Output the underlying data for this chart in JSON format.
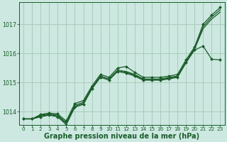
{
  "bg_color": "#cce8e0",
  "grid_color": "#aaccbb",
  "line_color": "#1a5c2a",
  "marker_color": "#1a5c2a",
  "xlabel": "Graphe pression niveau de la mer (hPa)",
  "xlabel_fontsize": 7.0,
  "xlabel_color": "#1a5c2a",
  "tick_color": "#1a5c2a",
  "tick_fontsize": 5.2,
  "ytick_fontsize": 5.8,
  "ylim": [
    1013.55,
    1017.75
  ],
  "xlim": [
    -0.5,
    23.5
  ],
  "yticks": [
    1014,
    1015,
    1016,
    1017
  ],
  "xticks": [
    0,
    1,
    2,
    3,
    4,
    5,
    6,
    7,
    8,
    9,
    10,
    11,
    12,
    13,
    14,
    15,
    16,
    17,
    18,
    19,
    20,
    21,
    22,
    23
  ],
  "series": [
    {
      "y": [
        1013.75,
        1013.75,
        1013.9,
        1013.95,
        1013.92,
        1013.68,
        1014.28,
        1014.38,
        1014.88,
        1015.28,
        1015.18,
        1015.5,
        1015.55,
        1015.35,
        1015.18,
        1015.18,
        1015.18,
        1015.22,
        1015.28,
        1015.78,
        1016.22,
        1017.0,
        1017.32,
        1017.58
      ],
      "marker": "D",
      "markersize": 2.0,
      "linewidth": 0.9
    },
    {
      "y": [
        1013.75,
        1013.75,
        1013.88,
        1013.92,
        1013.88,
        1013.62,
        1014.22,
        1014.32,
        1014.82,
        1015.22,
        1015.12,
        1015.42,
        1015.38,
        1015.28,
        1015.12,
        1015.12,
        1015.12,
        1015.18,
        1015.22,
        1015.72,
        1016.18,
        1016.92,
        1017.25,
        1017.5
      ],
      "marker": null,
      "markersize": 0,
      "linewidth": 0.9
    },
    {
      "y": [
        1013.75,
        1013.75,
        1013.85,
        1013.9,
        1013.85,
        1013.6,
        1014.18,
        1014.28,
        1014.82,
        1015.22,
        1015.12,
        1015.42,
        1015.35,
        1015.25,
        1015.1,
        1015.1,
        1015.1,
        1015.15,
        1015.2,
        1015.7,
        1016.15,
        1016.85,
        1017.18,
        1017.42
      ],
      "marker": null,
      "markersize": 0,
      "linewidth": 0.9
    },
    {
      "y": [
        1013.75,
        1013.75,
        1013.82,
        1013.88,
        1013.82,
        1013.55,
        1014.15,
        1014.25,
        1014.78,
        1015.18,
        1015.08,
        1015.38,
        1015.32,
        1015.22,
        1015.08,
        1015.08,
        1015.08,
        1015.12,
        1015.18,
        1015.68,
        1016.12,
        1016.25,
        1015.8,
        1015.78
      ],
      "marker": "D",
      "markersize": 2.0,
      "linewidth": 0.9
    }
  ]
}
